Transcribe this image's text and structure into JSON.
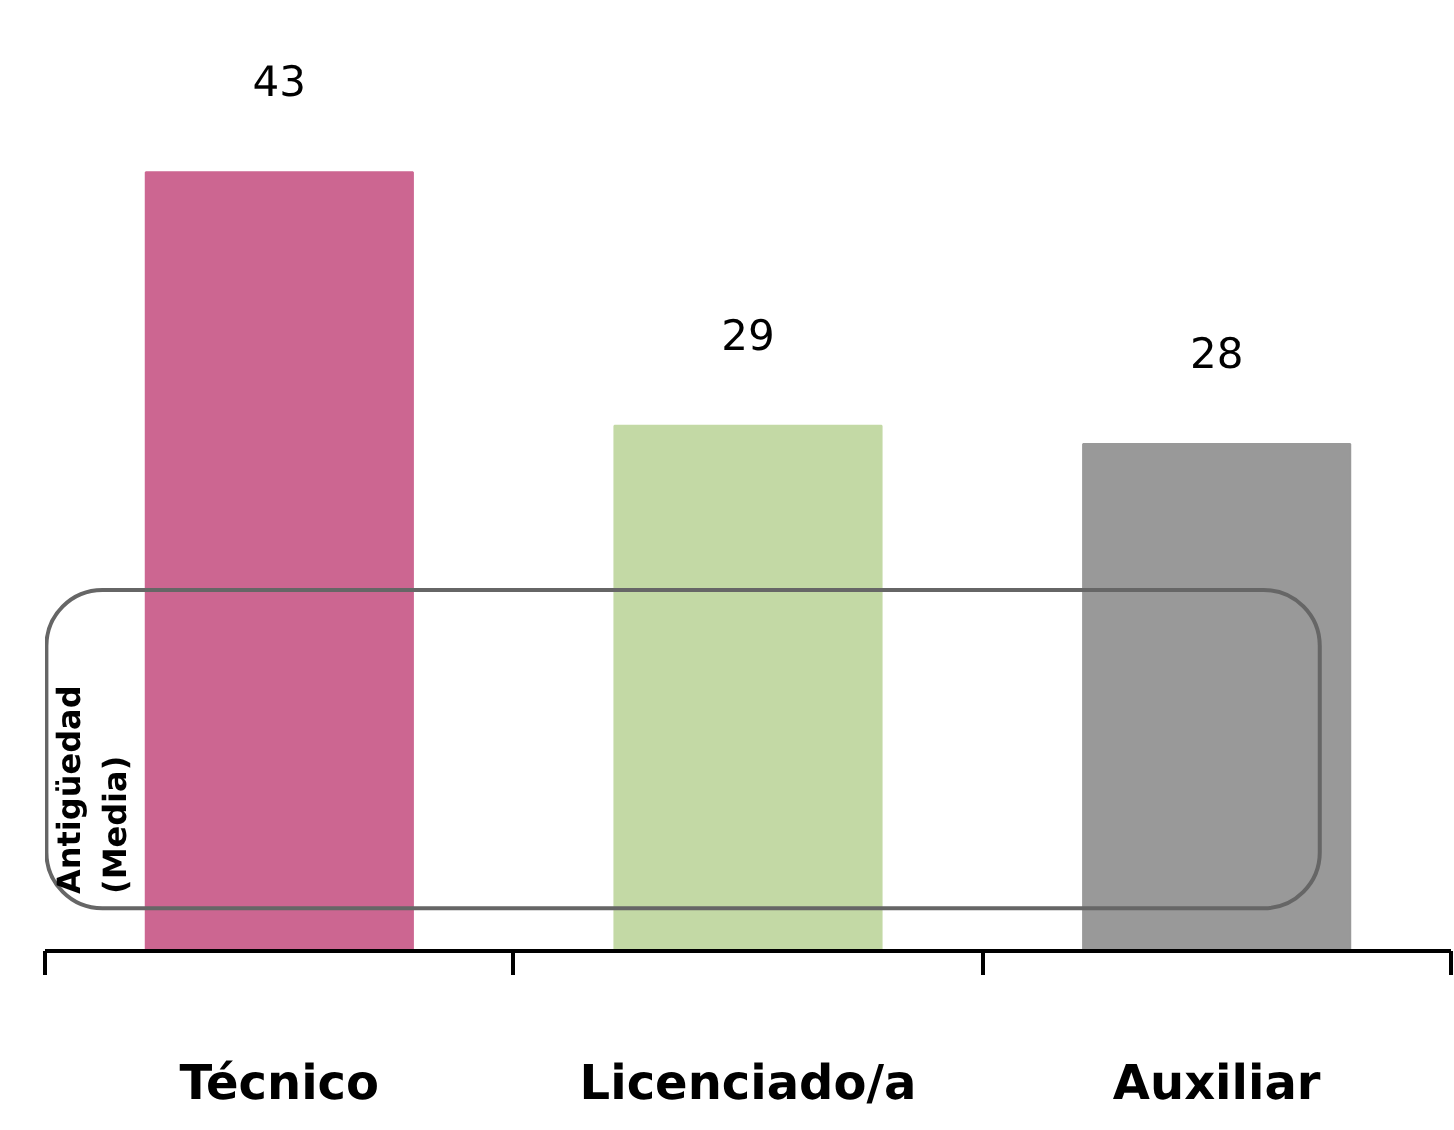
{
  "chart_data": {
    "type": "bar",
    "ylabel": "Antigüedad\n(Media)",
    "categories": [
      "Técnico",
      "Licenciado/a",
      "Auxiliar"
    ],
    "values": [
      43,
      29,
      28
    ],
    "colors": [
      "#cc6691",
      "#c3d9a5",
      "#999999"
    ],
    "data_labels": true,
    "grid": false
  }
}
